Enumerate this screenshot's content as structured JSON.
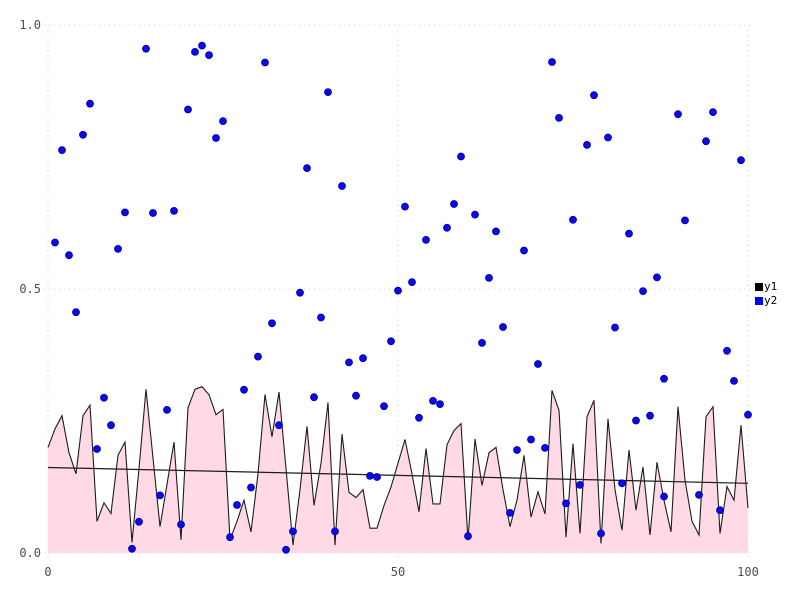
{
  "chart_data": {
    "type": "mixed",
    "title": "",
    "xlabel": "",
    "ylabel": "",
    "xlim": [
      0,
      100
    ],
    "ylim": [
      0,
      1
    ],
    "grid": "dotted",
    "xticks": [
      {
        "value": 0,
        "label": "0"
      },
      {
        "value": 50,
        "label": "50"
      },
      {
        "value": 100,
        "label": "100"
      }
    ],
    "yticks": [
      {
        "value": 0,
        "label": "0.0"
      },
      {
        "value": 0.5,
        "label": "0.5"
      },
      {
        "value": 1,
        "label": "1.0"
      }
    ],
    "colors": {
      "background": "#ffffff",
      "grid": "#d9d9e3",
      "tick_text": "#4d4d57",
      "area_fill": "#ffd9e5",
      "line": "#1c1c1c",
      "trend": "#1c1c1c",
      "scatter_fill": "#0b0bea",
      "scatter_stroke": "#0000b0",
      "legend_y1": "#000000",
      "legend_y2": "#0000ee"
    },
    "legend": {
      "position": "right",
      "items": [
        {
          "label": "y1",
          "color": "#000000"
        },
        {
          "label": "y2",
          "color": "#0000ee"
        }
      ]
    },
    "series": [
      {
        "name": "y1",
        "type": "area",
        "x_start": 0,
        "x_step": 1,
        "values": [
          0.2,
          0.235,
          0.26,
          0.19,
          0.15,
          0.26,
          0.28,
          0.06,
          0.095,
          0.075,
          0.185,
          0.21,
          0.02,
          0.16,
          0.31,
          0.18,
          0.05,
          0.13,
          0.21,
          0.025,
          0.275,
          0.31,
          0.315,
          0.3,
          0.262,
          0.272,
          0.025,
          0.06,
          0.1,
          0.04,
          0.15,
          0.3,
          0.22,
          0.305,
          0.16,
          0.015,
          0.12,
          0.24,
          0.09,
          0.17,
          0.285,
          0.015,
          0.225,
          0.115,
          0.105,
          0.12,
          0.047,
          0.047,
          0.09,
          0.125,
          0.17,
          0.215,
          0.15,
          0.078,
          0.198,
          0.093,
          0.093,
          0.205,
          0.232,
          0.245,
          0.024,
          0.216,
          0.128,
          0.19,
          0.2,
          0.12,
          0.05,
          0.1,
          0.185,
          0.068,
          0.116,
          0.074,
          0.308,
          0.27,
          0.03,
          0.207,
          0.037,
          0.258,
          0.289,
          0.018,
          0.254,
          0.12,
          0.043,
          0.195,
          0.081,
          0.163,
          0.034,
          0.172,
          0.1,
          0.04,
          0.277,
          0.138,
          0.06,
          0.034,
          0.258,
          0.277,
          0.037,
          0.126,
          0.1,
          0.242,
          0.085
        ]
      },
      {
        "name": "y2",
        "type": "scatter",
        "points": [
          [
            1,
            0.588
          ],
          [
            2,
            0.763
          ],
          [
            3,
            0.564
          ],
          [
            4,
            0.456
          ],
          [
            5,
            0.792
          ],
          [
            6,
            0.851
          ],
          [
            7,
            0.197
          ],
          [
            8,
            0.294
          ],
          [
            9,
            0.242
          ],
          [
            10,
            0.576
          ],
          [
            11,
            0.645
          ],
          [
            12,
            0.008
          ],
          [
            13,
            0.059
          ],
          [
            14,
            0.955
          ],
          [
            15,
            0.644
          ],
          [
            16,
            0.109
          ],
          [
            17,
            0.271
          ],
          [
            18,
            0.648
          ],
          [
            19,
            0.054
          ],
          [
            20,
            0.84
          ],
          [
            21,
            0.949
          ],
          [
            22,
            0.961
          ],
          [
            23,
            0.943
          ],
          [
            24,
            0.786
          ],
          [
            25,
            0.818
          ],
          [
            26,
            0.03
          ],
          [
            27,
            0.091
          ],
          [
            28,
            0.309
          ],
          [
            29,
            0.124
          ],
          [
            30,
            0.372
          ],
          [
            31,
            0.929
          ],
          [
            32,
            0.435
          ],
          [
            33,
            0.242
          ],
          [
            34,
            0.006
          ],
          [
            35,
            0.041
          ],
          [
            36,
            0.493
          ],
          [
            37,
            0.729
          ],
          [
            38,
            0.295
          ],
          [
            39,
            0.446
          ],
          [
            40,
            0.873
          ],
          [
            41,
            0.041
          ],
          [
            42,
            0.695
          ],
          [
            43,
            0.361
          ],
          [
            44,
            0.298
          ],
          [
            45,
            0.369
          ],
          [
            46,
            0.146
          ],
          [
            47,
            0.144
          ],
          [
            48,
            0.278
          ],
          [
            49,
            0.401
          ],
          [
            50,
            0.497
          ],
          [
            51,
            0.656
          ],
          [
            52,
            0.513
          ],
          [
            53,
            0.256
          ],
          [
            54,
            0.593
          ],
          [
            55,
            0.288
          ],
          [
            56,
            0.282
          ],
          [
            57,
            0.616
          ],
          [
            58,
            0.661
          ],
          [
            59,
            0.751
          ],
          [
            60,
            0.032
          ],
          [
            61,
            0.641
          ],
          [
            62,
            0.398
          ],
          [
            63,
            0.521
          ],
          [
            64,
            0.609
          ],
          [
            65,
            0.428
          ],
          [
            66,
            0.076
          ],
          [
            67,
            0.195
          ],
          [
            68,
            0.573
          ],
          [
            69,
            0.215
          ],
          [
            70,
            0.358
          ],
          [
            71,
            0.199
          ],
          [
            72,
            0.93
          ],
          [
            73,
            0.824
          ],
          [
            74,
            0.094
          ],
          [
            75,
            0.631
          ],
          [
            76,
            0.129
          ],
          [
            77,
            0.773
          ],
          [
            78,
            0.867
          ],
          [
            79,
            0.037
          ],
          [
            80,
            0.787
          ],
          [
            81,
            0.427
          ],
          [
            82,
            0.132
          ],
          [
            83,
            0.605
          ],
          [
            84,
            0.251
          ],
          [
            85,
            0.496
          ],
          [
            86,
            0.26
          ],
          [
            87,
            0.522
          ],
          [
            88,
            0.33
          ],
          [
            88,
            0.107
          ],
          [
            90,
            0.831
          ],
          [
            91,
            0.63
          ],
          [
            93,
            0.11
          ],
          [
            94,
            0.78
          ],
          [
            95,
            0.835
          ],
          [
            96,
            0.081
          ],
          [
            97,
            0.383
          ],
          [
            98,
            0.326
          ],
          [
            99,
            0.744
          ],
          [
            100,
            0.262
          ]
        ]
      },
      {
        "name": "trend",
        "type": "line",
        "x": [
          0,
          100
        ],
        "y": [
          0.162,
          0.132
        ]
      }
    ]
  }
}
